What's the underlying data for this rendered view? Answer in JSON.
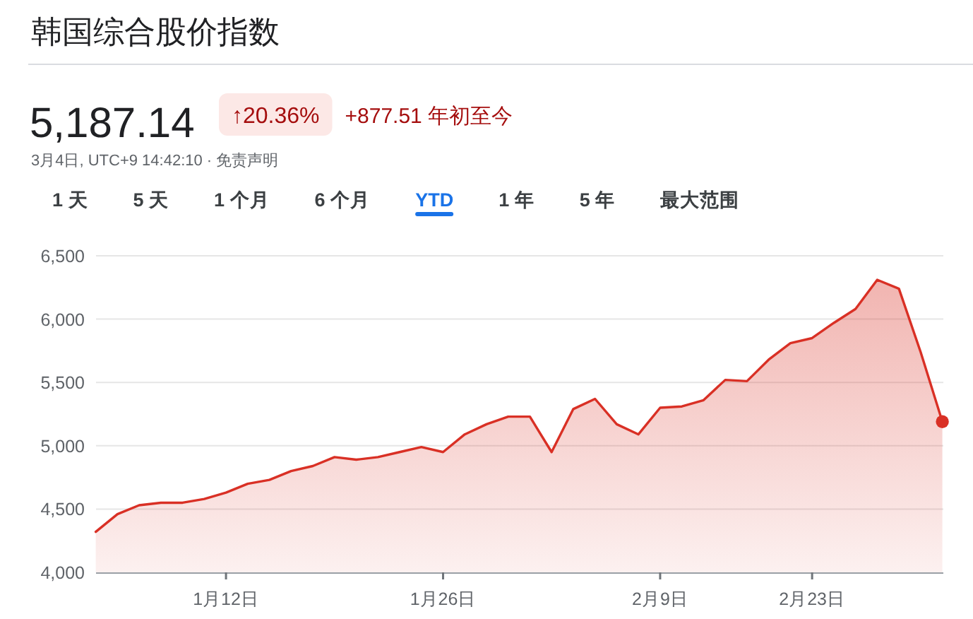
{
  "chart_data": {
    "type": "area",
    "title": "韩国综合股价指数",
    "annotations": [
      "5,187.14",
      "↑20.36%",
      "+877.51 年初至今",
      "3月4日, UTC+9 14:42:10 · 免责声明",
      "1 天",
      "5 天",
      "1 个月",
      "6 个月",
      "YTD",
      "1 年",
      "5 年",
      "最大范围"
    ],
    "categories": [
      null,
      null,
      null,
      null,
      null,
      null,
      "1月12日",
      null,
      null,
      null,
      null,
      null,
      null,
      null,
      null,
      null,
      "1月26日",
      null,
      null,
      null,
      null,
      null,
      null,
      null,
      null,
      null,
      "2月9日",
      null,
      null,
      null,
      null,
      null,
      null,
      "2月23日",
      null,
      null,
      null,
      null,
      null,
      null
    ],
    "series": [
      {
        "color": "#d93025",
        "values": [
          4320,
          4460,
          4530,
          4550,
          4550,
          4580,
          4630,
          4700,
          4730,
          4800,
          4840,
          4910,
          4890,
          4910,
          4950,
          4990,
          4950,
          5090,
          5170,
          5230,
          5230,
          4950,
          5290,
          5370,
          5170,
          5090,
          5300,
          5310,
          5360,
          5520,
          5510,
          5680,
          5810,
          5850,
          5970,
          6080,
          6310,
          6240,
          5740,
          5190
        ]
      },
      {
        "type": "scatter",
        "color": "#d93025",
        "marker": "circle",
        "values": [
          null,
          null,
          null,
          null,
          null,
          null,
          null,
          null,
          null,
          null,
          null,
          null,
          null,
          null,
          null,
          null,
          null,
          null,
          null,
          null,
          null,
          null,
          null,
          null,
          null,
          null,
          null,
          null,
          null,
          null,
          null,
          null,
          null,
          null,
          null,
          null,
          null,
          null,
          null,
          5190
        ]
      }
    ],
    "ylim": [
      4000,
      6500
    ],
    "yticks": [
      {
        "value": 4000,
        "label": "4,000"
      },
      {
        "value": 4500,
        "label": "4,500"
      },
      {
        "value": 5000,
        "label": "5,000"
      },
      {
        "value": 5500,
        "label": "5,500"
      },
      {
        "value": 6000,
        "label": "6,000"
      },
      {
        "value": 6500,
        "label": "6,500"
      }
    ],
    "grid": "y"
  }
}
